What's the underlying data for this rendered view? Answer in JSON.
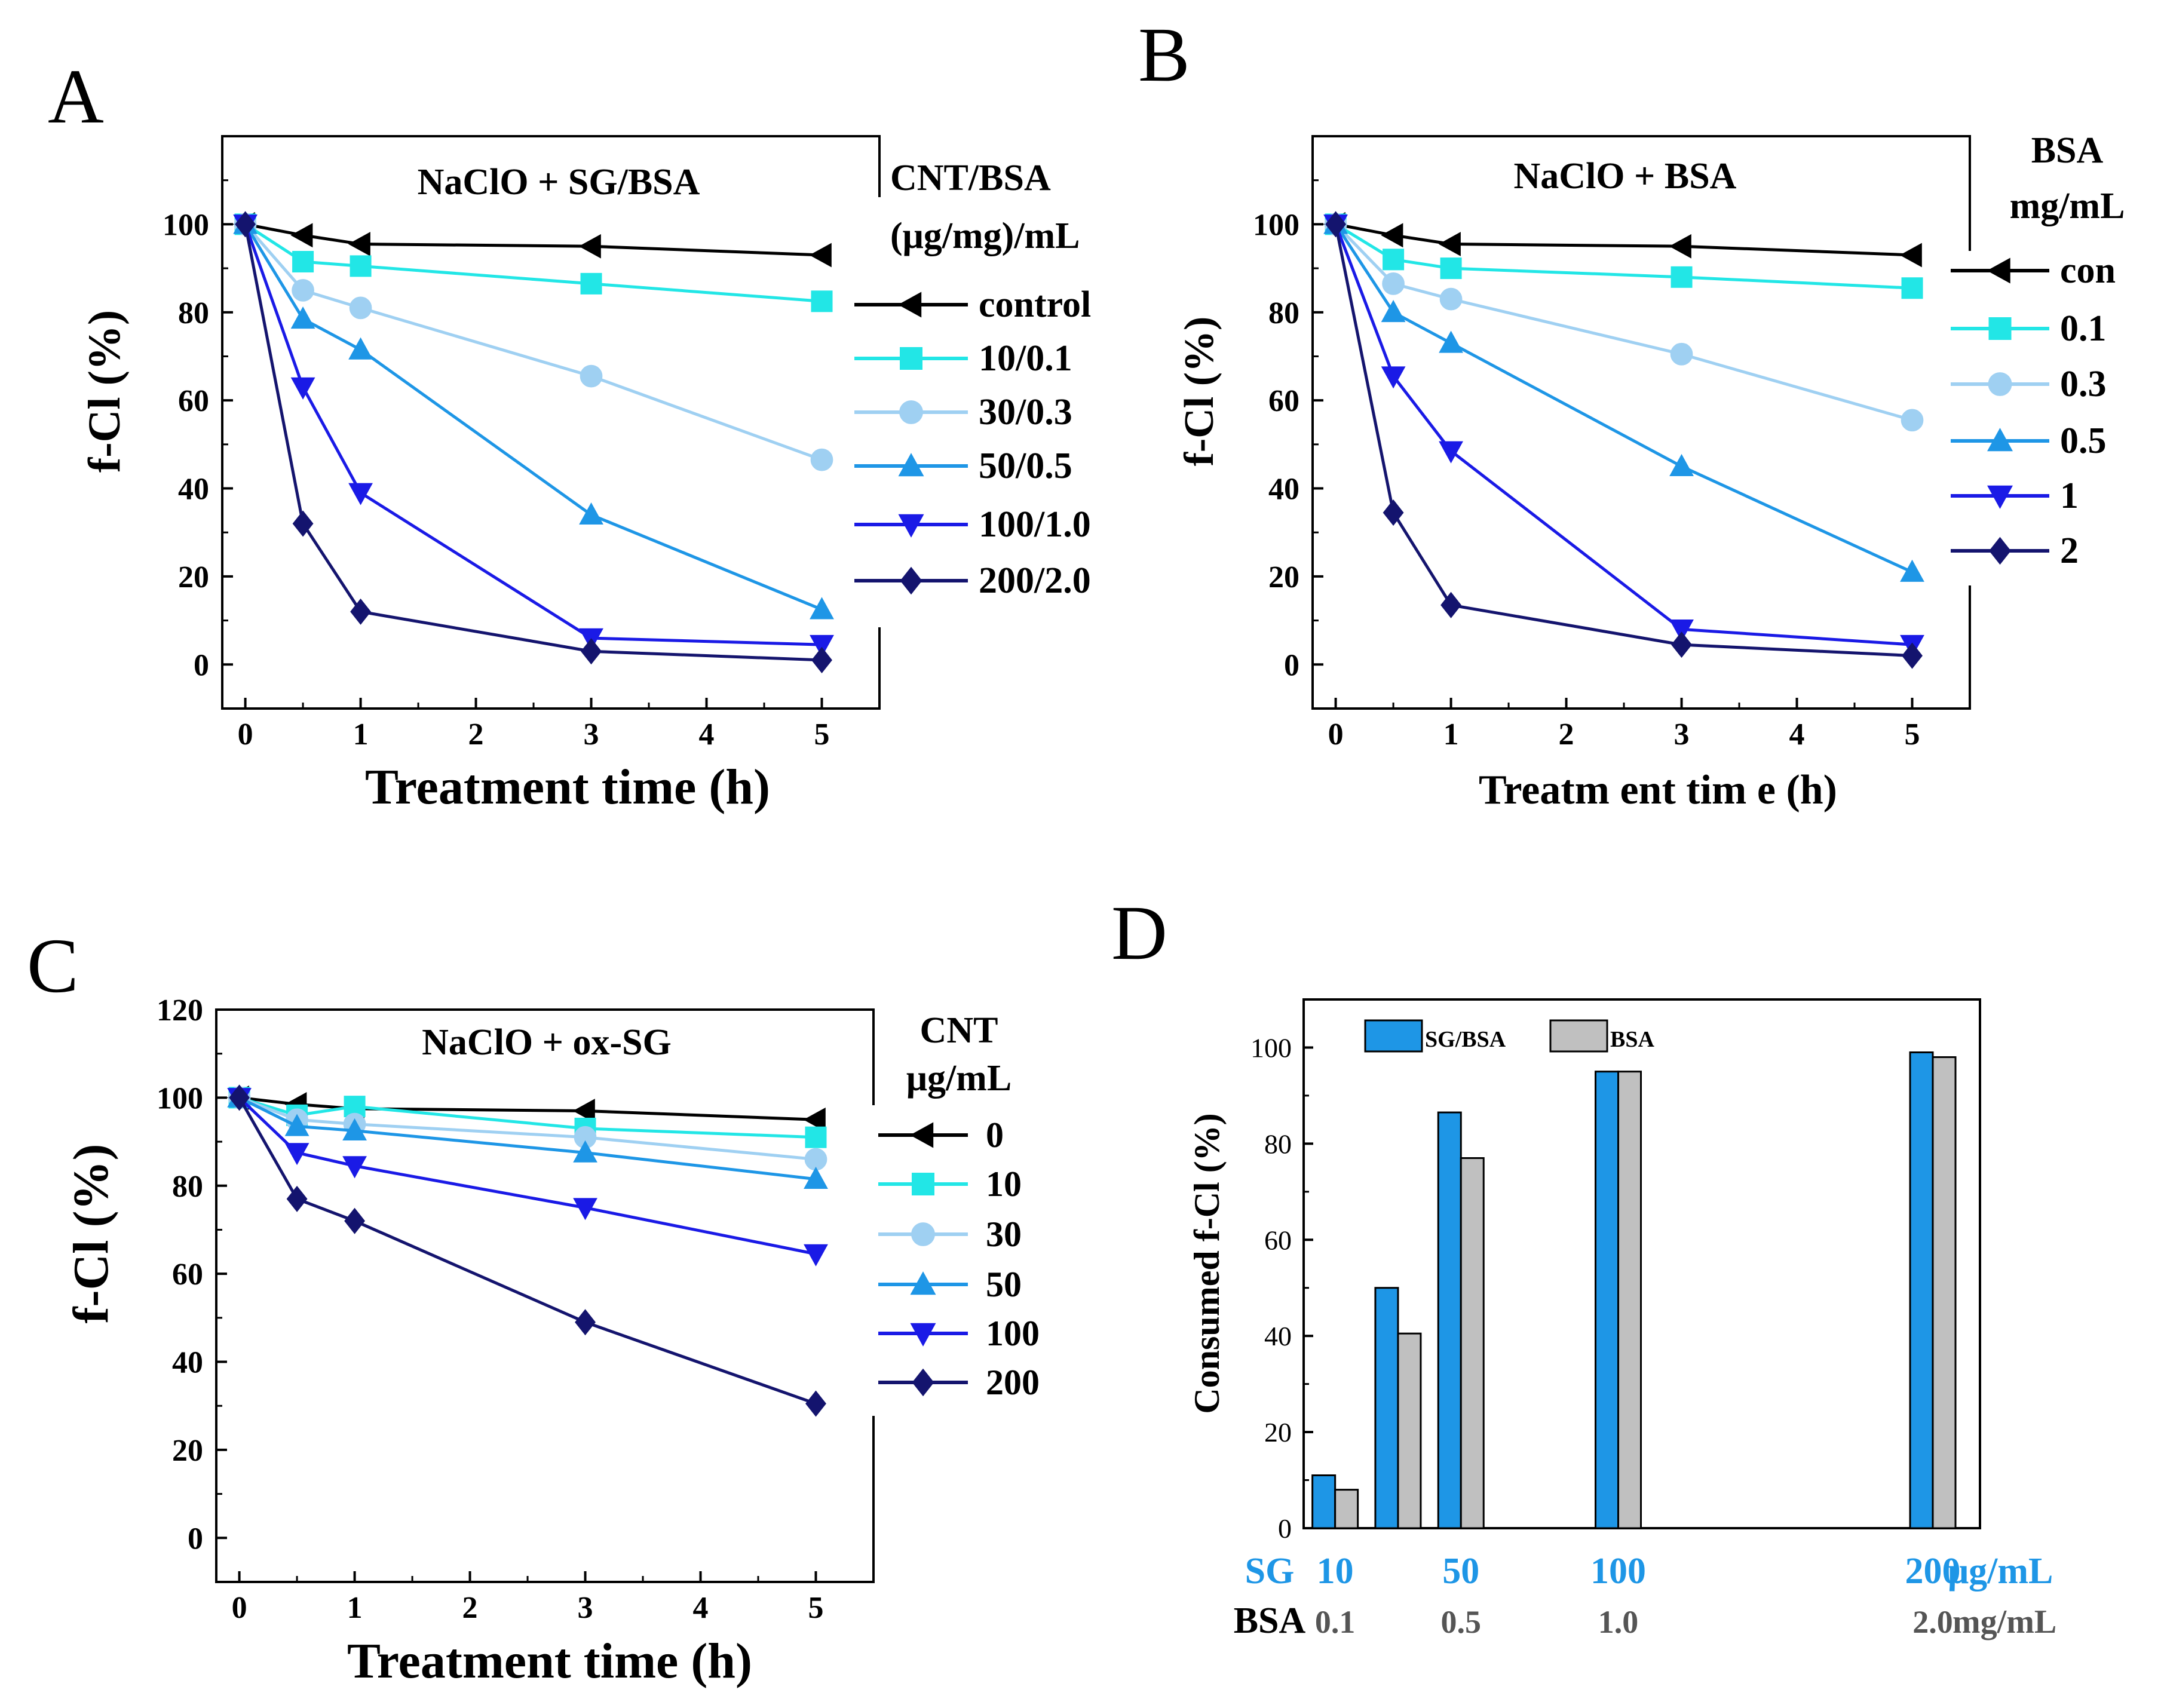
{
  "colors": {
    "control": "#000000",
    "s1": "#22e6e6",
    "s2": "#9fd0f2",
    "s3": "#1e96e6",
    "s4": "#1a1ae6",
    "s5": "#14146e",
    "bar_sg": "#1e96e6",
    "bar_bsa": "#c0c0c0",
    "sg_text": "#1e96e6",
    "bsa_text": "#555555"
  },
  "chart_data": [
    {
      "panel": "A",
      "type": "line",
      "title": "NaClO + SG/BSA",
      "xlabel": "Treatment time (h)",
      "ylabel": "f-Cl (%)",
      "xlim": [
        -0.2,
        5.5
      ],
      "ylim": [
        -10,
        120
      ],
      "xticks": [
        0,
        1,
        2,
        3,
        4,
        5
      ],
      "yticks": [
        0,
        20,
        40,
        60,
        80,
        100
      ],
      "legend_title": [
        "CNT/BSA",
        "(μg/mg)/mL"
      ],
      "x": [
        0,
        0.5,
        1,
        3,
        5
      ],
      "series": [
        {
          "name": "control",
          "color_key": "control",
          "marker": "tri-left",
          "values": [
            100,
            97.5,
            95.5,
            95,
            93
          ]
        },
        {
          "name": "10/0.1",
          "color_key": "s1",
          "marker": "square",
          "values": [
            100,
            91.5,
            90.5,
            86.5,
            82.5
          ]
        },
        {
          "name": "30/0.3",
          "color_key": "s2",
          "marker": "circle",
          "values": [
            100,
            85,
            81,
            65.5,
            46.5
          ]
        },
        {
          "name": "50/0.5",
          "color_key": "s3",
          "marker": "tri-up",
          "values": [
            100,
            78.5,
            71.5,
            34,
            12.5
          ]
        },
        {
          "name": "100/1.0",
          "color_key": "s4",
          "marker": "tri-down",
          "values": [
            100,
            63,
            39,
            6,
            4.5
          ]
        },
        {
          "name": "200/2.0",
          "color_key": "s5",
          "marker": "diamond",
          "values": [
            100,
            32,
            12,
            3,
            1
          ]
        }
      ]
    },
    {
      "panel": "B",
      "type": "line",
      "title": "NaClO + BSA",
      "xlabel": "Treatm ent tim e (h)",
      "ylabel": "f-Cl (%)",
      "xlim": [
        -0.2,
        5.5
      ],
      "ylim": [
        -10,
        120
      ],
      "xticks": [
        0,
        1,
        2,
        3,
        4,
        5
      ],
      "yticks": [
        0,
        20,
        40,
        60,
        80,
        100
      ],
      "legend_title": [
        "BSA",
        "mg/mL"
      ],
      "x": [
        0,
        0.5,
        1,
        3,
        5
      ],
      "series": [
        {
          "name": "con",
          "color_key": "control",
          "marker": "tri-left",
          "values": [
            100,
            97.5,
            95.5,
            95,
            93
          ]
        },
        {
          "name": "0.1",
          "color_key": "s1",
          "marker": "square",
          "values": [
            100,
            92,
            90,
            88,
            85.5
          ]
        },
        {
          "name": "0.3",
          "color_key": "s2",
          "marker": "circle",
          "values": [
            100,
            86.5,
            83,
            70.5,
            55.5
          ]
        },
        {
          "name": "0.5",
          "color_key": "s3",
          "marker": "tri-up",
          "values": [
            100,
            80,
            73,
            45,
            21
          ]
        },
        {
          "name": "1",
          "color_key": "s4",
          "marker": "tri-down",
          "values": [
            100,
            65.5,
            48.5,
            8,
            4.5
          ]
        },
        {
          "name": "2",
          "color_key": "s5",
          "marker": "diamond",
          "values": [
            100,
            34.5,
            13.5,
            4.5,
            2
          ]
        }
      ]
    },
    {
      "panel": "C",
      "type": "line",
      "title": "NaClO + ox-SG",
      "xlabel": "Treatment time (h)",
      "ylabel": "f-Cl (%)",
      "xlim": [
        -0.2,
        5.5
      ],
      "ylim": [
        -10,
        120
      ],
      "xticks": [
        0,
        1,
        2,
        3,
        4,
        5
      ],
      "yticks": [
        0,
        20,
        40,
        60,
        80,
        100,
        120
      ],
      "legend_title": [
        "CNT",
        "μg/mL"
      ],
      "x": [
        0,
        0.5,
        1,
        3,
        5
      ],
      "series": [
        {
          "name": "0",
          "color_key": "control",
          "marker": "tri-left",
          "values": [
            100,
            98.5,
            97.5,
            97,
            95
          ]
        },
        {
          "name": "10",
          "color_key": "s1",
          "marker": "square",
          "values": [
            100,
            96,
            98,
            93,
            91
          ]
        },
        {
          "name": "30",
          "color_key": "s2",
          "marker": "circle",
          "values": [
            100,
            95,
            94,
            91,
            86
          ]
        },
        {
          "name": "50",
          "color_key": "s3",
          "marker": "tri-up",
          "values": [
            100,
            93.5,
            92.5,
            87.5,
            81.5
          ]
        },
        {
          "name": "100",
          "color_key": "s4",
          "marker": "tri-down",
          "values": [
            100,
            87.5,
            84.5,
            75,
            64.5
          ]
        },
        {
          "name": "200",
          "color_key": "s5",
          "marker": "diamond",
          "values": [
            100,
            77,
            72,
            49,
            30.5
          ]
        }
      ]
    },
    {
      "panel": "D",
      "type": "bar",
      "ylabel": "Consumed f-Cl (%)",
      "ylim": [
        0,
        110
      ],
      "yticks": [
        0,
        20,
        40,
        60,
        80,
        100
      ],
      "xlim": [
        0,
        215
      ],
      "categories": [
        10,
        30,
        50,
        100,
        200
      ],
      "series": [
        {
          "name": "SG/BSA",
          "color_key": "bar_sg",
          "values": [
            11,
            50,
            86.5,
            95,
            99
          ]
        },
        {
          "name": "BSA",
          "color_key": "bar_bsa",
          "values": [
            8,
            40.5,
            77,
            95,
            98
          ]
        }
      ],
      "x_row1_label": "SG",
      "x_row1_ticks": [
        "10",
        "50",
        "100",
        "200"
      ],
      "x_row1_positions": [
        10,
        50,
        100,
        200
      ],
      "x_row1_unit": "μg/mL",
      "x_row2_label": "BSA",
      "x_row2_ticks": [
        "0.1",
        "0.5",
        "1.0",
        "2.0"
      ],
      "x_row2_unit": "mg/mL"
    }
  ],
  "panel_letters": [
    "A",
    "B",
    "C",
    "D"
  ]
}
